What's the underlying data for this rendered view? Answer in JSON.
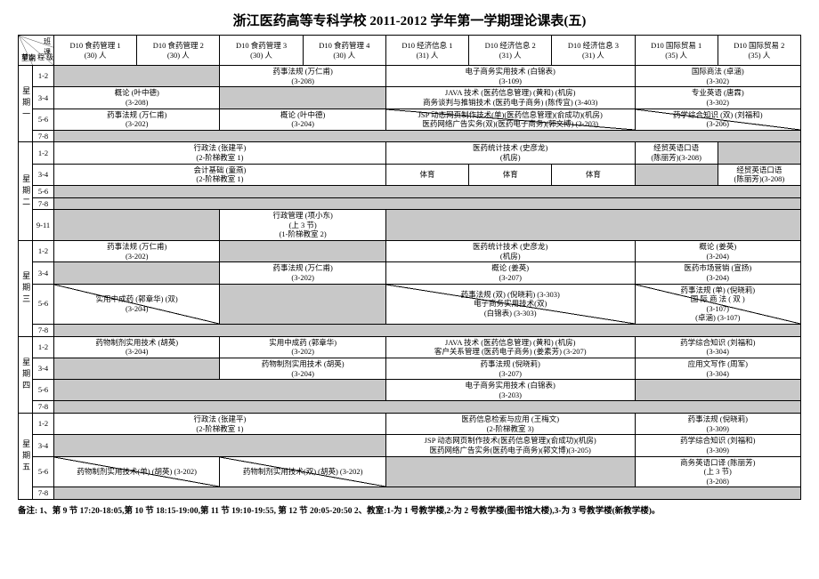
{
  "title": "浙江医药高等专科学校 2011-2012 学年第一学期理论课表(五)",
  "corner": {
    "c1": "班",
    "c2": "课",
    "c3": "节次   程 级",
    "c4": "星期"
  },
  "cols": [
    {
      "l1": "D10 食药管理 1",
      "l2": "(30) 人"
    },
    {
      "l1": "D10 食药管理 2",
      "l2": "(30) 人"
    },
    {
      "l1": "D10 食药管理 3",
      "l2": "(30) 人"
    },
    {
      "l1": "D10 食药管理 4",
      "l2": "(30) 人"
    },
    {
      "l1": "D10 经济信息 1",
      "l2": "(31) 人"
    },
    {
      "l1": "D10 经济信息 2",
      "l2": "(31) 人"
    },
    {
      "l1": "D10 经济信息 3",
      "l2": "(31) 人"
    },
    {
      "l1": "D10 国际贸易 1",
      "l2": "(35) 人"
    },
    {
      "l1": "D10 国际贸易 2",
      "l2": "(35) 人"
    }
  ],
  "days": [
    "星期一",
    "星期二",
    "星期三",
    "星期四",
    "星期五"
  ],
  "periods": [
    "1-2",
    "3-4",
    "5-6",
    "7-8",
    "9-11"
  ],
  "mon": {
    "r1": {
      "a": "药事法规 (万仁甫)\n(3-208)",
      "b": "电子商务实用技术 (白锦表)\n(3-109)",
      "c": "国际商法 (卓涵)\n(3-302)"
    },
    "r2": {
      "a": "概论 (叶中德)\n(3-208)",
      "b": "JAVA 技术 (医药信息管理) (黄和) (机房)\n商务谈判与推销技术 (医药电子商务) (陈传宜) (3-403)",
      "c": "专业英语 (唐霖)\n(3-302)"
    },
    "r3": {
      "a": "药事法规 (万仁甫)\n(3-202)",
      "b": "概论 (叶中德)\n(3-204)",
      "c": "JSP 动态网页制作技术(单)(医药信息管理)(俞成功)(机房)\n 医药网络广告实务(双)(医药电子商务)(郭文博) (3-203)",
      "d": "药学综合知识 (双) (刘福和)\n(3-206)"
    }
  },
  "tue": {
    "r1": {
      "a": "行政法 (张建平)\n(2-阶梯教室 1)",
      "b": "医药统计技术 (史彦龙)\n(机房)",
      "c": "经贸英语口语\n(陈丽芳)(3-208)"
    },
    "r2": {
      "a": "会计基础 (童燕)\n(2-阶梯教室 1)",
      "b": "体育",
      "c": "经贸英语口语\n(陈丽芳)(3-208)"
    },
    "r4": {
      "a": "行政管理 (项小东)\n(上 3 节)\n(1-阶梯教室 2)"
    }
  },
  "wed": {
    "r1": {
      "a": "药事法规 (万仁甫)\n(3-202)",
      "b": "医药统计技术 (史彦龙)\n(机房)",
      "c": "概论 (姜英)\n(3-204)"
    },
    "r2": {
      "a": "药事法规 (万仁甫)\n(3-202)",
      "b": "概论 (姜英)\n(3-207)",
      "c": "医药市场营销 (宣扬)\n(3-204)"
    },
    "r3": {
      "a": "实用中成药 (郭章华) (双)\n(3-204)",
      "b": "药事法规 (双) (倪晓莉) (3-303)",
      "c1": "药事法规 (单) (倪晓莉)\n国    际    商    法    (    双    )\n(3-107)\n(卓涵) (3-107)",
      "d": "电子商务实用技术(双)\n(白锦表) (3-303)"
    }
  },
  "thu": {
    "r1": {
      "a": "药物制剂实用技术 (胡英)\n(3-204)",
      "b": "实用中成药 (郭章华)\n(3-202)",
      "c": "JAVA 技术 (医药信息管理) (黄和) (机房)\n客户关系管理 (医药电子商务) (姜素芳) (3-207)",
      "d": "药学综合知识 (刘福和)\n(3-304)"
    },
    "r2": {
      "a": "药物制剂实用技术 (胡英)\n(3-204)",
      "b": "药事法规 (倪晓莉)\n(3-207)",
      "c": "应用文写作 (周军)\n(3-304)"
    },
    "r3": {
      "a": "电子商务实用技术 (白锦表)\n(3-203)"
    }
  },
  "fri": {
    "r1": {
      "a": "行政法 (张建平)\n(2-阶梯教室 1)",
      "b": "医药信息检索与应用 (王梅文)\n(2-阶梯教室 3)",
      "c": "药事法规 (倪晓莉)\n(3-309)"
    },
    "r2": {
      "a": "JSP 动态网页制作技术(医药信息管理)(俞成功)(机房)\n 医药网络广告实务(医药电子商务)(郭文博)(3-205)",
      "b": "药学综合知识 (刘福和)\n(3-309)"
    },
    "r3": {
      "a": "药物制剂实用技术(单) (胡英) (3-202)",
      "b": "药物制剂实用技术(双) (胡英) (3-202)",
      "c": "商务英语口译 (陈丽芳)\n(上 3 节)\n(3-208)"
    }
  },
  "note": "备注:    1、第 9 节 17:20-18:05,第 10 节 18:15-19:00,第 11 节 19:10-19:55, 第 12 节 20:05-20:50    2、教室:1-为 1 号教学楼,2-为 2 号教学楼(图书馆大楼),3-为 3 号教学楼(新教学楼)。"
}
